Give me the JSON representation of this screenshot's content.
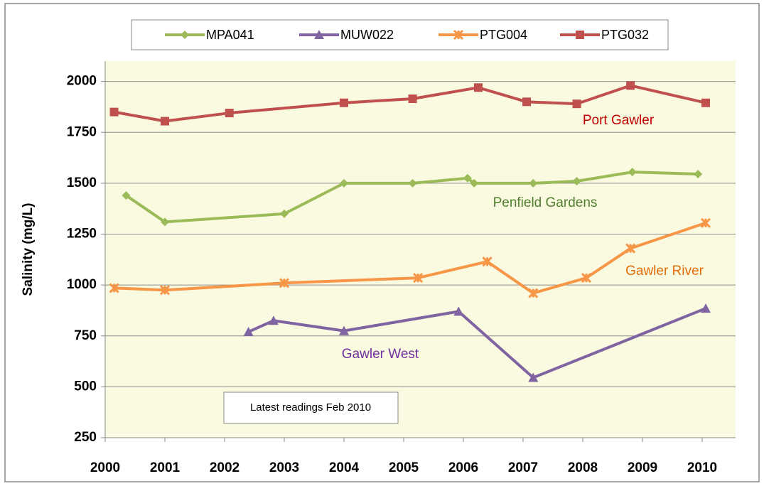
{
  "chart_data": {
    "type": "line",
    "y_label": "Salinity (mg/L)",
    "xlim": [
      2000,
      2010.56
    ],
    "xticks": [
      2000,
      2001,
      2002,
      2003,
      2004,
      2005,
      2006,
      2007,
      2008,
      2009,
      2010
    ],
    "ylim": [
      250,
      2100
    ],
    "yticks": [
      250,
      500,
      750,
      1000,
      1250,
      1500,
      1750,
      2000
    ],
    "grid": true,
    "legend": "top",
    "series": [
      {
        "name": "MPA041",
        "color": "#9bbb59",
        "marker": "diamond",
        "x": [
          2000.35,
          2001.0,
          2003.0,
          2004.0,
          2005.15,
          2006.07,
          2006.18,
          2007.17,
          2007.9,
          2008.83,
          2009.93
        ],
        "values": [
          1440,
          1310,
          1350,
          1500,
          1500,
          1525,
          1500,
          1500,
          1510,
          1555,
          1545
        ]
      },
      {
        "name": "MUW022",
        "color": "#8064a2",
        "marker": "triangle",
        "x": [
          2002.4,
          2002.82,
          2004.0,
          2005.92,
          2007.17,
          2010.06
        ],
        "values": [
          770,
          825,
          775,
          870,
          545,
          885
        ]
      },
      {
        "name": "PTG004",
        "color": "#f79646",
        "marker": "star",
        "x": [
          2000.15,
          2001.0,
          2003.0,
          2005.24,
          2006.4,
          2007.17,
          2008.06,
          2008.8,
          2010.06
        ],
        "values": [
          985,
          975,
          1010,
          1035,
          1115,
          960,
          1035,
          1180,
          1305
        ]
      },
      {
        "name": "PTG032",
        "color": "#c0504d",
        "marker": "square",
        "x": [
          2000.15,
          2001.0,
          2002.08,
          2004.0,
          2005.15,
          2006.25,
          2007.06,
          2007.9,
          2008.8,
          2010.06
        ],
        "values": [
          1850,
          1805,
          1845,
          1895,
          1915,
          1970,
          1900,
          1890,
          1980,
          1895
        ]
      }
    ],
    "annotations": [
      {
        "text": "Port Gawler",
        "color": "#c00000"
      },
      {
        "text": "Penfield Gardens",
        "color": "#4f7f2f"
      },
      {
        "text": "Gawler River",
        "color": "#e36c09"
      },
      {
        "text": "Gawler West",
        "color": "#7030a0"
      },
      {
        "text": "Latest readings  Feb 2010",
        "color": "#000000"
      }
    ]
  }
}
